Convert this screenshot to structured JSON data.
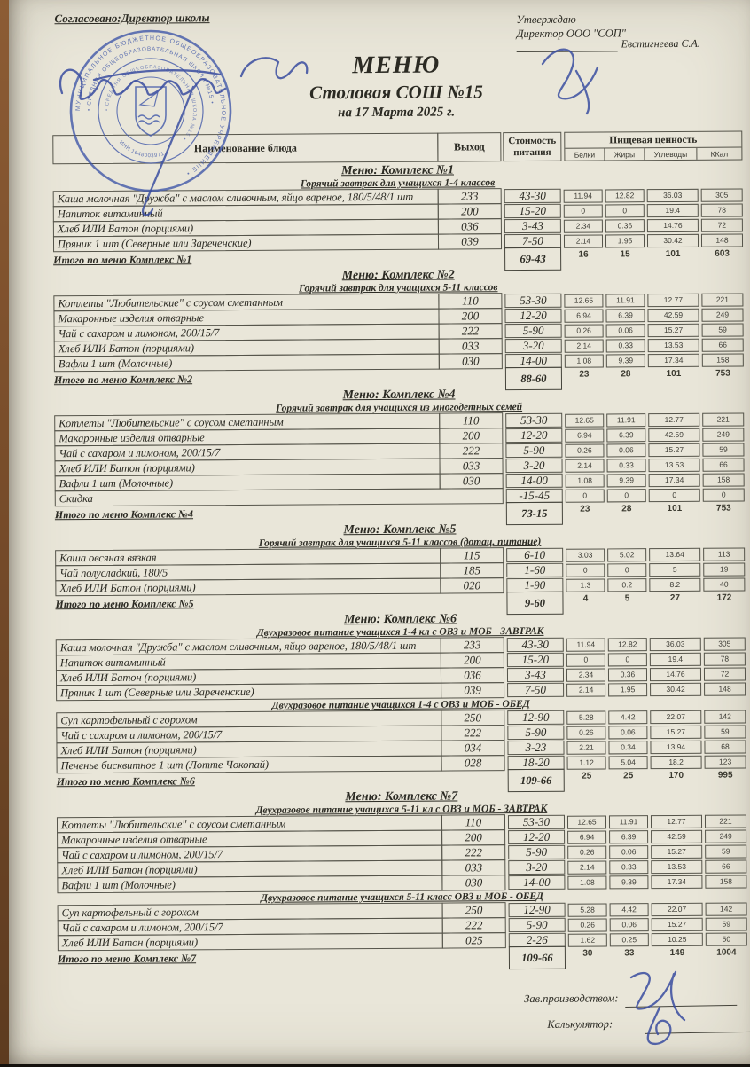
{
  "document": {
    "agreed_label": "Согласовано:Директор школы",
    "approved": {
      "line1": "Утверждаю",
      "line2": "Директор ООО \"СОП\"",
      "signer": "Евстигнеева С.А."
    },
    "title": "МЕНЮ",
    "subtitle": "Столовая СОШ №15",
    "date_line": "на 17 Марта 2025 г.",
    "footer": {
      "production_label": "Зав.производством:",
      "calculator_label": "Калькулятор:"
    },
    "stamp": {
      "color": "#3d55a8",
      "ring_outer": "МУНИЦИПАЛЬНОЕ БЮДЖЕТНОЕ ОБЩЕОБРАЗОВАТЕЛЬНОЕ УЧРЕЖДЕНИЕ •",
      "ring_inner": "• СРЕДНЯЯ ОБЩЕОБРАЗОВАТЕЛЬНАЯ ШКОЛА №15 •",
      "center_text": "ИНН 1648003971"
    }
  },
  "table": {
    "header": {
      "name_col": "Наименование блюда",
      "out_col": "Выход",
      "cost_line1": "Стоимость",
      "cost_line2": "питания",
      "nutrition": "Пищевая ценность",
      "cols": [
        "Белки",
        "Жиры",
        "Углеводы",
        "ККал"
      ]
    }
  },
  "sections": [
    {
      "title": "Меню: Комплекс №1",
      "groups": [
        {
          "subtitle": "Горячий завтрак для учащихся 1-4 классов",
          "rows": [
            {
              "name": "Каша молочная \"Дружба\" с маслом сливочным, яйцо вареное, 180/5/48/1 шт",
              "out": "233",
              "cost": "43-30",
              "protein": "11.94",
              "fat": "12.82",
              "carbs": "36.03",
              "kcal": "305"
            },
            {
              "name": "Напиток витаминный",
              "out": "200",
              "cost": "15-20",
              "protein": "0",
              "fat": "0",
              "carbs": "19.4",
              "kcal": "78"
            },
            {
              "name": "Хлеб ИЛИ Батон (порциями)",
              "out": "036",
              "cost": "3-43",
              "protein": "2.34",
              "fat": "0.36",
              "carbs": "14.76",
              "kcal": "72"
            },
            {
              "name": "Пряник 1 шт (Северные или Зареченские)",
              "out": "039",
              "cost": "7-50",
              "protein": "2.14",
              "fat": "1.95",
              "carbs": "30.42",
              "kcal": "148"
            }
          ]
        }
      ],
      "total": {
        "label": "Итого по меню Комплекс №1",
        "cost": "69-43",
        "protein": "16",
        "fat": "15",
        "carbs": "101",
        "kcal": "603"
      }
    },
    {
      "title": "Меню: Комплекс №2",
      "groups": [
        {
          "subtitle": "Горячий завтрак для учащихся 5-11 классов",
          "rows": [
            {
              "name": "Котлеты  \"Любительские\" с соусом сметанным",
              "out": "110",
              "cost": "53-30",
              "protein": "12.65",
              "fat": "11.91",
              "carbs": "12.77",
              "kcal": "221"
            },
            {
              "name": "Макаронные изделия отварные",
              "out": "200",
              "cost": "12-20",
              "protein": "6.94",
              "fat": "6.39",
              "carbs": "42.59",
              "kcal": "249"
            },
            {
              "name": "Чай с сахаром и лимоном, 200/15/7",
              "out": "222",
              "cost": "5-90",
              "protein": "0.26",
              "fat": "0.06",
              "carbs": "15.27",
              "kcal": "59"
            },
            {
              "name": "Хлеб ИЛИ Батон (порциями)",
              "out": "033",
              "cost": "3-20",
              "protein": "2.14",
              "fat": "0.33",
              "carbs": "13.53",
              "kcal": "66"
            },
            {
              "name": "Вафли 1 шт (Молочные)",
              "out": "030",
              "cost": "14-00",
              "protein": "1.08",
              "fat": "9.39",
              "carbs": "17.34",
              "kcal": "158"
            }
          ]
        }
      ],
      "total": {
        "label": "Итого по меню Комплекс №2",
        "cost": "88-60",
        "protein": "23",
        "fat": "28",
        "carbs": "101",
        "kcal": "753"
      }
    },
    {
      "title": "Меню: Комплекс №4",
      "groups": [
        {
          "subtitle": "Горячий завтрак для учащихся из многодетных семей",
          "rows": [
            {
              "name": "Котлеты  \"Любительские\" с соусом сметанным",
              "out": "110",
              "cost": "53-30",
              "protein": "12.65",
              "fat": "11.91",
              "carbs": "12.77",
              "kcal": "221"
            },
            {
              "name": "Макаронные изделия отварные",
              "out": "200",
              "cost": "12-20",
              "protein": "6.94",
              "fat": "6.39",
              "carbs": "42.59",
              "kcal": "249"
            },
            {
              "name": "Чай с сахаром и лимоном, 200/15/7",
              "out": "222",
              "cost": "5-90",
              "protein": "0.26",
              "fat": "0.06",
              "carbs": "15.27",
              "kcal": "59"
            },
            {
              "name": "Хлеб ИЛИ Батон (порциями)",
              "out": "033",
              "cost": "3-20",
              "protein": "2.14",
              "fat": "0.33",
              "carbs": "13.53",
              "kcal": "66"
            },
            {
              "name": "Вафли 1 шт (Молочные)",
              "out": "030",
              "cost": "14-00",
              "protein": "1.08",
              "fat": "9.39",
              "carbs": "17.34",
              "kcal": "158"
            },
            {
              "name": "Скидка",
              "out": "",
              "cost": "-15-45",
              "protein": "0",
              "fat": "0",
              "carbs": "0",
              "kcal": "0"
            }
          ]
        }
      ],
      "total": {
        "label": "Итого по меню Комплекс №4",
        "cost": "73-15",
        "protein": "23",
        "fat": "28",
        "carbs": "101",
        "kcal": "753"
      }
    },
    {
      "title": "Меню: Комплекс №5",
      "groups": [
        {
          "subtitle": "Горячий завтрак для учащихся 5-11 классов (дотац. питание)",
          "rows": [
            {
              "name": "Каша овсяная вязкая",
              "out": "115",
              "cost": "6-10",
              "protein": "3.03",
              "fat": "5.02",
              "carbs": "13.64",
              "kcal": "113"
            },
            {
              "name": "Чай полусладкий, 180/5",
              "out": "185",
              "cost": "1-60",
              "protein": "0",
              "fat": "0",
              "carbs": "5",
              "kcal": "19"
            },
            {
              "name": "Хлеб ИЛИ Батон (порциями)",
              "out": "020",
              "cost": "1-90",
              "protein": "1.3",
              "fat": "0.2",
              "carbs": "8.2",
              "kcal": "40"
            }
          ]
        }
      ],
      "total": {
        "label": "Итого по меню Комплекс №5",
        "cost": "9-60",
        "protein": "4",
        "fat": "5",
        "carbs": "27",
        "kcal": "172"
      }
    },
    {
      "title": "Меню: Комплекс №6",
      "groups": [
        {
          "subtitle": "Двухразовое питание учащихся 1-4 кл с ОВЗ и МОБ - ЗАВТРАК",
          "rows": [
            {
              "name": "Каша молочная \"Дружба\" с маслом сливочным, яйцо вареное, 180/5/48/1 шт",
              "out": "233",
              "cost": "43-30",
              "protein": "11.94",
              "fat": "12.82",
              "carbs": "36.03",
              "kcal": "305"
            },
            {
              "name": "Напиток витаминный",
              "out": "200",
              "cost": "15-20",
              "protein": "0",
              "fat": "0",
              "carbs": "19.4",
              "kcal": "78"
            },
            {
              "name": "Хлеб ИЛИ Батон (порциями)",
              "out": "036",
              "cost": "3-43",
              "protein": "2.34",
              "fat": "0.36",
              "carbs": "14.76",
              "kcal": "72"
            },
            {
              "name": "Пряник 1 шт (Северные или Зареченские)",
              "out": "039",
              "cost": "7-50",
              "protein": "2.14",
              "fat": "1.95",
              "carbs": "30.42",
              "kcal": "148"
            }
          ]
        },
        {
          "subtitle": "Двухразовое питание учащихся 1-4 с ОВЗ и МОБ - ОБЕД",
          "rows": [
            {
              "name": "Суп картофельный с горохом",
              "out": "250",
              "cost": "12-90",
              "protein": "5.28",
              "fat": "4.42",
              "carbs": "22.07",
              "kcal": "142"
            },
            {
              "name": "Чай с сахаром и лимоном, 200/15/7",
              "out": "222",
              "cost": "5-90",
              "protein": "0.26",
              "fat": "0.06",
              "carbs": "15.27",
              "kcal": "59"
            },
            {
              "name": "Хлеб ИЛИ Батон (порциями)",
              "out": "034",
              "cost": "3-23",
              "protein": "2.21",
              "fat": "0.34",
              "carbs": "13.94",
              "kcal": "68"
            },
            {
              "name": "Печенье бисквитное 1 шт (Лотте Чокопай)",
              "out": "028",
              "cost": "18-20",
              "protein": "1.12",
              "fat": "5.04",
              "carbs": "18.2",
              "kcal": "123"
            }
          ]
        }
      ],
      "total": {
        "label": "Итого по меню Комплекс №6",
        "cost": "109-66",
        "protein": "25",
        "fat": "25",
        "carbs": "170",
        "kcal": "995"
      }
    },
    {
      "title": "Меню: Комплекс №7",
      "groups": [
        {
          "subtitle": "Двухразовое питание учащихся 5-11 кл с  ОВЗ и МОБ - ЗАВТРАК",
          "rows": [
            {
              "name": "Котлеты  \"Любительские\" с соусом сметанным",
              "out": "110",
              "cost": "53-30",
              "protein": "12.65",
              "fat": "11.91",
              "carbs": "12.77",
              "kcal": "221"
            },
            {
              "name": "Макаронные изделия отварные",
              "out": "200",
              "cost": "12-20",
              "protein": "6.94",
              "fat": "6.39",
              "carbs": "42.59",
              "kcal": "249"
            },
            {
              "name": "Чай с сахаром и лимоном, 200/15/7",
              "out": "222",
              "cost": "5-90",
              "protein": "0.26",
              "fat": "0.06",
              "carbs": "15.27",
              "kcal": "59"
            },
            {
              "name": "Хлеб ИЛИ Батон (порциями)",
              "out": "033",
              "cost": "3-20",
              "protein": "2.14",
              "fat": "0.33",
              "carbs": "13.53",
              "kcal": "66"
            },
            {
              "name": "Вафли 1 шт (Молочные)",
              "out": "030",
              "cost": "14-00",
              "protein": "1.08",
              "fat": "9.39",
              "carbs": "17.34",
              "kcal": "158"
            }
          ]
        },
        {
          "subtitle": "Двухразовое питание учащихся 5-11 класс ОВЗ и МОБ - ОБЕД",
          "rows": [
            {
              "name": "Суп картофельный с горохом",
              "out": "250",
              "cost": "12-90",
              "protein": "5.28",
              "fat": "4.42",
              "carbs": "22.07",
              "kcal": "142"
            },
            {
              "name": "Чай с сахаром и лимоном, 200/15/7",
              "out": "222",
              "cost": "5-90",
              "protein": "0.26",
              "fat": "0.06",
              "carbs": "15.27",
              "kcal": "59"
            },
            {
              "name": "Хлеб ИЛИ Батон (порциями)",
              "out": "025",
              "cost": "2-26",
              "protein": "1.62",
              "fat": "0.25",
              "carbs": "10.25",
              "kcal": "50"
            }
          ]
        }
      ],
      "total": {
        "label": "Итого по меню Комплекс №7",
        "cost": "109-66",
        "protein": "30",
        "fat": "33",
        "carbs": "149",
        "kcal": "1004"
      }
    }
  ]
}
